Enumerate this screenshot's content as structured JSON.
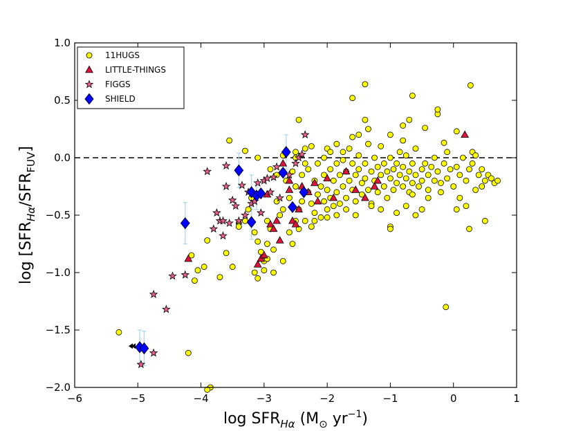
{
  "chart_data": {
    "type": "scatter",
    "title": "",
    "xlabel": "log SFR_Hα (M☉ yr⁻¹)",
    "ylabel": "log [SFR_Hα/SFR_FUV]",
    "xlabel_parts": {
      "prefix": "log SFR",
      "sub": "Hα",
      "unit_open": " (M",
      "sun": "⊙",
      "unit_mid": " yr",
      "sup": "−1",
      "unit_close": ")"
    },
    "ylabel_parts": {
      "prefix": "log [SFR",
      "sub1": "Hα",
      "mid": "/SFR",
      "sub2": "FUV",
      "close": "]"
    },
    "xlim": [
      -6,
      1
    ],
    "ylim": [
      -2.0,
      1.0
    ],
    "xticks": [
      -6,
      -5,
      -4,
      -3,
      -2,
      -1,
      0,
      1
    ],
    "xtick_labels": [
      "−6",
      "−5",
      "−4",
      "−3",
      "−2",
      "−1",
      "0",
      "1"
    ],
    "yticks": [
      -2.0,
      -1.5,
      -1.0,
      -0.5,
      0.0,
      0.5,
      1.0
    ],
    "ytick_labels": [
      "−2.0",
      "−1.5",
      "−1.0",
      "−0.5",
      "0.0",
      "0.5",
      "1.0"
    ],
    "reference_line": {
      "y": 0.0,
      "style": "dashed"
    },
    "legend_position": "top-left",
    "series": [
      {
        "name": "11HUGS",
        "marker": "circle",
        "color": "#ffff00",
        "points": [
          [
            -5.3,
            -1.52
          ],
          [
            -4.2,
            -1.7
          ],
          [
            -4.1,
            -1.07
          ],
          [
            -4.15,
            -0.85
          ],
          [
            -4.05,
            -0.98
          ],
          [
            -3.95,
            -0.95
          ],
          [
            -3.9,
            -0.72
          ],
          [
            -3.7,
            -1.04
          ],
          [
            -3.6,
            -0.83
          ],
          [
            -3.5,
            -0.95
          ],
          [
            -3.55,
            0.15
          ],
          [
            -3.4,
            -0.57
          ],
          [
            -3.3,
            -0.55
          ],
          [
            -3.25,
            -0.45
          ],
          [
            -3.2,
            -0.35
          ],
          [
            -3.15,
            -0.65
          ],
          [
            -3.1,
            -0.73
          ],
          [
            -3.05,
            -0.82
          ],
          [
            -3.0,
            -0.9
          ],
          [
            -2.95,
            -0.75
          ],
          [
            -3.3,
            0.06
          ],
          [
            -3.1,
            0.0
          ],
          [
            -2.95,
            -0.55
          ],
          [
            -2.9,
            -0.62
          ],
          [
            -2.85,
            -0.8
          ],
          [
            -2.8,
            -0.38
          ],
          [
            -2.75,
            -0.5
          ],
          [
            -2.7,
            -0.9
          ],
          [
            -2.7,
            -0.45
          ],
          [
            -2.65,
            -0.2
          ],
          [
            -2.6,
            -0.35
          ],
          [
            -2.6,
            -0.65
          ],
          [
            -2.55,
            -0.75
          ],
          [
            -2.5,
            -0.55
          ],
          [
            -2.5,
            -0.25
          ],
          [
            -2.45,
            -0.45
          ],
          [
            -2.45,
            -0.62
          ],
          [
            -2.4,
            -0.38
          ],
          [
            -2.4,
            -0.15
          ],
          [
            -2.35,
            -0.55
          ],
          [
            -2.3,
            -0.3
          ],
          [
            -2.3,
            -0.1
          ],
          [
            -2.25,
            -0.4
          ],
          [
            -2.25,
            -0.6
          ],
          [
            -2.2,
            -0.2
          ],
          [
            -2.2,
            -0.48
          ],
          [
            -2.15,
            -0.32
          ],
          [
            -2.15,
            -0.05
          ],
          [
            -2.1,
            -0.25
          ],
          [
            -2.1,
            -0.52
          ],
          [
            -2.05,
            -0.15
          ],
          [
            -2.05,
            -0.38
          ],
          [
            -2.0,
            -0.28
          ],
          [
            -2.0,
            -0.45
          ],
          [
            -1.95,
            -0.1
          ],
          [
            -1.95,
            -0.35
          ],
          [
            -1.9,
            -0.2
          ],
          [
            -1.9,
            -0.42
          ],
          [
            -1.85,
            -0.05
          ],
          [
            -1.85,
            -0.3
          ],
          [
            -1.8,
            -0.15
          ],
          [
            -1.8,
            -0.4
          ],
          [
            -1.75,
            -0.25
          ],
          [
            -1.75,
            0.05
          ],
          [
            -1.7,
            -0.12
          ],
          [
            -1.7,
            -0.35
          ],
          [
            -1.65,
            -0.2
          ],
          [
            -1.65,
            0.08
          ],
          [
            -1.6,
            -0.28
          ],
          [
            -1.6,
            -0.05
          ],
          [
            -1.55,
            -0.15
          ],
          [
            -1.55,
            -0.38
          ],
          [
            -1.5,
            -0.1
          ],
          [
            -1.5,
            0.02
          ],
          [
            -1.45,
            -0.22
          ],
          [
            -1.45,
            -0.32
          ],
          [
            -1.4,
            -0.05
          ],
          [
            -1.4,
            -0.18
          ],
          [
            -1.35,
            -0.28
          ],
          [
            -1.35,
            0.12
          ],
          [
            -1.3,
            -0.12
          ],
          [
            -1.3,
            -0.4
          ],
          [
            -1.25,
            -0.2
          ],
          [
            -1.25,
            0.0
          ],
          [
            -1.2,
            -0.08
          ],
          [
            -1.2,
            -0.3
          ],
          [
            -1.15,
            -0.15
          ],
          [
            -1.15,
            0.1
          ],
          [
            -1.1,
            -0.25
          ],
          [
            -1.1,
            -0.05
          ],
          [
            -1.05,
            -0.12
          ],
          [
            -1.05,
            -0.35
          ],
          [
            -1.0,
            -0.18
          ],
          [
            -1.0,
            0.0
          ],
          [
            -0.95,
            -0.1
          ],
          [
            -0.95,
            -0.28
          ],
          [
            -0.9,
            -0.05
          ],
          [
            -0.9,
            -0.22
          ],
          [
            -0.85,
            -0.15
          ],
          [
            -0.85,
            0.05
          ],
          [
            -0.8,
            -0.25
          ],
          [
            -0.8,
            -0.08
          ],
          [
            -0.75,
            -0.18
          ],
          [
            -0.75,
            0.02
          ],
          [
            -0.7,
            -0.12
          ],
          [
            -0.7,
            -0.3
          ],
          [
            -0.65,
            -0.05
          ],
          [
            -0.65,
            -0.22
          ],
          [
            -0.6,
            -0.15
          ],
          [
            -0.6,
            0.08
          ],
          [
            -0.55,
            -0.25
          ],
          [
            -0.5,
            -0.1
          ],
          [
            -0.5,
            -0.2
          ],
          [
            -0.45,
            -0.05
          ],
          [
            -0.4,
            -0.15
          ],
          [
            -0.4,
            -0.28
          ],
          [
            -0.35,
            -0.08
          ],
          [
            -0.3,
            -0.2
          ],
          [
            -0.3,
            0.0
          ],
          [
            -0.25,
            -0.12
          ],
          [
            -0.2,
            -0.22
          ],
          [
            -0.15,
            -0.05
          ],
          [
            -0.1,
            -0.18
          ],
          [
            -0.05,
            -0.1
          ],
          [
            0.0,
            -0.25
          ],
          [
            0.05,
            -0.08
          ],
          [
            0.1,
            -0.15
          ],
          [
            0.15,
            0.0
          ],
          [
            0.2,
            -0.2
          ],
          [
            0.25,
            -0.1
          ],
          [
            0.3,
            -0.05
          ],
          [
            0.35,
            -0.28
          ],
          [
            0.4,
            -0.15
          ],
          [
            0.45,
            -0.1
          ],
          [
            0.5,
            -0.2
          ],
          [
            0.55,
            -0.15
          ],
          [
            0.6,
            -0.18
          ],
          [
            0.65,
            -0.22
          ],
          [
            0.7,
            -0.2
          ],
          [
            0.3,
            0.05
          ],
          [
            -2.45,
            0.33
          ],
          [
            -1.6,
            0.52
          ],
          [
            -1.4,
            0.64
          ],
          [
            -0.65,
            0.54
          ],
          [
            0.27,
            0.63
          ],
          [
            -1.4,
            0.33
          ],
          [
            -1.35,
            0.25
          ],
          [
            -0.8,
            0.28
          ],
          [
            -0.25,
            0.38
          ],
          [
            -0.25,
            0.42
          ],
          [
            -0.7,
            0.33
          ],
          [
            -0.45,
            0.26
          ],
          [
            0.05,
            0.23
          ],
          [
            -1.5,
            0.2
          ],
          [
            -1.0,
            0.2
          ],
          [
            -0.8,
            0.15
          ],
          [
            -0.15,
            0.13
          ],
          [
            0.35,
            0.02
          ],
          [
            -1.85,
            0.12
          ],
          [
            -2.25,
            0.1
          ],
          [
            -2.35,
            0.08
          ],
          [
            -2.5,
            0.05
          ],
          [
            -2.0,
            0.08
          ],
          [
            -1.6,
            0.18
          ],
          [
            -1.0,
            -0.6
          ],
          [
            -1.0,
            -0.62
          ],
          [
            -1.15,
            -0.45
          ],
          [
            -0.75,
            -0.42
          ],
          [
            -0.9,
            -0.48
          ],
          [
            -0.5,
            -0.45
          ],
          [
            -0.6,
            -0.5
          ],
          [
            -0.4,
            -0.35
          ],
          [
            -0.65,
            -0.32
          ],
          [
            0.1,
            -0.35
          ],
          [
            0.05,
            -0.45
          ],
          [
            0.25,
            -0.62
          ],
          [
            0.5,
            -0.55
          ],
          [
            0.2,
            -0.42
          ],
          [
            -0.12,
            -1.3
          ],
          [
            -1.3,
            -0.42
          ],
          [
            -1.7,
            -0.45
          ],
          [
            -1.85,
            -0.5
          ],
          [
            -2.0,
            -0.52
          ],
          [
            -2.2,
            -0.55
          ],
          [
            -1.55,
            -0.5
          ],
          [
            -3.15,
            -1.0
          ],
          [
            -3.1,
            -1.05
          ],
          [
            -2.85,
            -1.0
          ],
          [
            -3.0,
            -0.98
          ],
          [
            -2.95,
            -0.88
          ],
          [
            -3.4,
            -0.6
          ],
          [
            -2.5,
            0.0
          ],
          [
            -2.7,
            0.02
          ],
          [
            -2.9,
            -0.1
          ],
          [
            -2.8,
            -0.15
          ],
          [
            -2.55,
            -0.12
          ],
          [
            -2.35,
            -0.05
          ],
          [
            -2.05,
            0.0
          ],
          [
            -1.95,
            0.05
          ],
          [
            -1.75,
            -0.02
          ],
          [
            -0.1,
            0.05
          ],
          [
            -0.2,
            -0.3
          ],
          [
            0.45,
            -0.25
          ],
          [
            -3.85,
            -2.0
          ],
          [
            -3.9,
            -2.02
          ]
        ]
      },
      {
        "name": "LITTLE-THINGS",
        "marker": "triangle",
        "color": "#dc143c",
        "points": [
          [
            -4.2,
            -0.88
          ],
          [
            -2.95,
            -0.32
          ],
          [
            -2.9,
            -0.58
          ],
          [
            -2.85,
            -0.62
          ],
          [
            -2.75,
            -0.72
          ],
          [
            -2.8,
            -0.55
          ],
          [
            -2.6,
            -0.28
          ],
          [
            -2.55,
            -0.55
          ],
          [
            -2.5,
            -0.58
          ],
          [
            -2.45,
            -0.45
          ],
          [
            -3.05,
            -0.88
          ],
          [
            -3.1,
            -0.93
          ],
          [
            -3.0,
            -0.85
          ],
          [
            -2.7,
            -0.05
          ],
          [
            -2.6,
            -0.2
          ],
          [
            -2.4,
            -0.25
          ],
          [
            -2.3,
            -0.3
          ],
          [
            -2.2,
            -0.22
          ],
          [
            -2.0,
            -0.18
          ],
          [
            -1.9,
            -0.35
          ],
          [
            -1.7,
            -0.12
          ],
          [
            -1.4,
            -0.35
          ],
          [
            -1.2,
            -0.2
          ],
          [
            -1.25,
            -0.25
          ],
          [
            -2.15,
            -0.38
          ],
          [
            -1.55,
            -0.28
          ],
          [
            0.18,
            0.2
          ]
        ]
      },
      {
        "name": "FIGGS",
        "marker": "star",
        "color": "#e8608c",
        "points": [
          [
            -4.95,
            -1.8
          ],
          [
            -4.75,
            -1.7
          ],
          [
            -4.75,
            -1.19
          ],
          [
            -4.55,
            -1.32
          ],
          [
            -4.45,
            -1.03
          ],
          [
            -4.25,
            -1.02
          ],
          [
            -3.9,
            -0.12
          ],
          [
            -3.6,
            -0.07
          ],
          [
            -3.8,
            -0.62
          ],
          [
            -3.75,
            -0.48
          ],
          [
            -3.7,
            -0.55
          ],
          [
            -3.65,
            -0.55
          ],
          [
            -3.6,
            -0.25
          ],
          [
            -3.55,
            -0.57
          ],
          [
            -3.5,
            -0.37
          ],
          [
            -3.45,
            -0.42
          ],
          [
            -3.4,
            -0.55
          ],
          [
            -3.35,
            -0.24
          ],
          [
            -3.3,
            -0.5
          ],
          [
            -3.25,
            -0.3
          ],
          [
            -3.2,
            -0.4
          ],
          [
            -3.15,
            -0.38
          ],
          [
            -3.1,
            -0.22
          ],
          [
            -3.05,
            -0.48
          ],
          [
            -3.0,
            -0.2
          ],
          [
            -2.85,
            -0.17
          ],
          [
            -2.8,
            -0.08
          ],
          [
            -2.9,
            -0.3
          ],
          [
            -2.75,
            -0.35
          ],
          [
            -2.6,
            -0.15
          ],
          [
            -2.5,
            -0.05
          ],
          [
            -2.45,
            0.0
          ],
          [
            -2.4,
            0.03
          ],
          [
            -2.35,
            0.2
          ],
          [
            -2.95,
            -0.18
          ],
          [
            -3.65,
            -0.68
          ]
        ]
      },
      {
        "name": "SHIELD",
        "marker": "diamond",
        "color": "#0000ff",
        "points": [
          [
            -4.25,
            -0.57
          ],
          [
            -3.4,
            -0.11
          ],
          [
            -3.2,
            -0.3
          ],
          [
            -3.2,
            -0.56
          ],
          [
            -3.12,
            -0.33
          ],
          [
            -3.05,
            -0.31
          ],
          [
            -2.7,
            -0.13
          ],
          [
            -2.65,
            0.05
          ],
          [
            -2.55,
            -0.43
          ],
          [
            -2.37,
            -0.3
          ],
          [
            -4.97,
            -1.65
          ],
          [
            -4.9,
            -1.66
          ]
        ],
        "error_bars": [
          [
            -4.25,
            -0.57,
            0.18
          ],
          [
            -3.4,
            -0.11,
            0.15
          ],
          [
            -3.2,
            -0.3,
            0.15
          ],
          [
            -3.2,
            -0.56,
            0.15
          ],
          [
            -3.12,
            -0.33,
            0.12
          ],
          [
            -2.65,
            0.05,
            0.15
          ],
          [
            -4.97,
            -1.65,
            0.15
          ],
          [
            -4.9,
            -1.66,
            0.15
          ]
        ],
        "upper_limit_arrows": [
          [
            -5.08,
            -1.64
          ]
        ]
      }
    ]
  }
}
